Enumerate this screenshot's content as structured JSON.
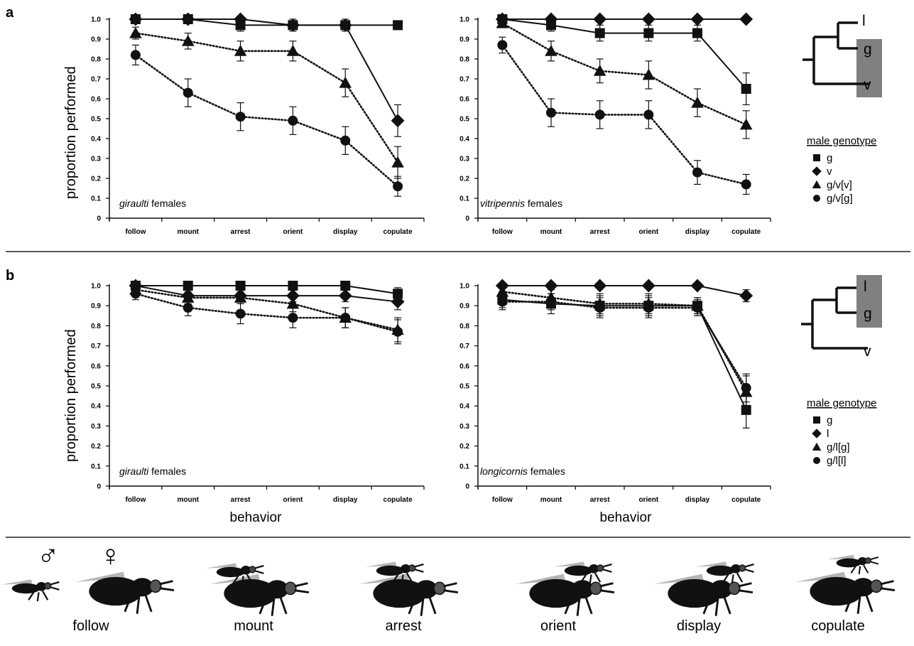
{
  "panel_labels": {
    "a": "a",
    "b": "b"
  },
  "axes": {
    "ylabel": "proportion performed",
    "xlabel": "behavior",
    "yticks": [
      "0",
      "0.1",
      "0.2",
      "0.3",
      "0.4",
      "0.5",
      "0.6",
      "0.7",
      "0.8",
      "0.9",
      "1.0"
    ]
  },
  "chart_data": [
    {
      "type": "line",
      "panel": "a",
      "annotation_italic": "giraulti",
      "annotation_rest": " females",
      "categories": [
        "follow",
        "mount",
        "arrest",
        "orient",
        "display",
        "copulate"
      ],
      "ylim": [
        0,
        1.0
      ],
      "series": [
        {
          "name": "g",
          "marker": "square",
          "line": "solid",
          "values": [
            1.0,
            1.0,
            0.97,
            0.97,
            0.97,
            0.97
          ],
          "err": [
            0.01,
            0.01,
            0.03,
            0.03,
            0.03,
            0.02
          ]
        },
        {
          "name": "v",
          "marker": "diamond",
          "line": "solid",
          "values": [
            1.0,
            1.0,
            1.0,
            0.97,
            0.97,
            0.49
          ],
          "err": [
            0.01,
            0.01,
            0.01,
            0.02,
            0.02,
            0.08
          ]
        },
        {
          "name": "g/v[v]",
          "marker": "triangle",
          "line": "dotted",
          "values": [
            0.93,
            0.89,
            0.84,
            0.84,
            0.68,
            0.28
          ],
          "err": [
            0.03,
            0.04,
            0.05,
            0.05,
            0.07,
            0.08
          ]
        },
        {
          "name": "g/v[g]",
          "marker": "circle",
          "line": "dotted",
          "values": [
            0.82,
            0.63,
            0.51,
            0.49,
            0.39,
            0.16
          ],
          "err": [
            0.05,
            0.07,
            0.07,
            0.07,
            0.07,
            0.05
          ]
        }
      ]
    },
    {
      "type": "line",
      "panel": "a",
      "annotation_italic": "vitripennis",
      "annotation_rest": " females",
      "categories": [
        "follow",
        "mount",
        "arrest",
        "orient",
        "display",
        "copulate"
      ],
      "ylim": [
        0,
        1.0
      ],
      "series": [
        {
          "name": "g",
          "marker": "square",
          "line": "solid",
          "values": [
            1.0,
            0.97,
            0.93,
            0.93,
            0.93,
            0.65
          ],
          "err": [
            0.01,
            0.03,
            0.04,
            0.04,
            0.04,
            0.08
          ]
        },
        {
          "name": "v",
          "marker": "diamond",
          "line": "solid",
          "values": [
            1.0,
            1.0,
            1.0,
            1.0,
            1.0,
            1.0
          ],
          "err": [
            0.01,
            0.01,
            0.01,
            0.01,
            0.01,
            0.01
          ]
        },
        {
          "name": "g/v[v]",
          "marker": "triangle",
          "line": "dotted",
          "values": [
            0.98,
            0.84,
            0.74,
            0.72,
            0.58,
            0.47
          ],
          "err": [
            0.02,
            0.05,
            0.06,
            0.07,
            0.07,
            0.07
          ]
        },
        {
          "name": "g/v[g]",
          "marker": "circle",
          "line": "dotted",
          "values": [
            0.87,
            0.53,
            0.52,
            0.52,
            0.23,
            0.17
          ],
          "err": [
            0.04,
            0.07,
            0.07,
            0.07,
            0.06,
            0.05
          ]
        }
      ]
    },
    {
      "type": "line",
      "panel": "b",
      "annotation_italic": "giraulti",
      "annotation_rest": " females",
      "categories": [
        "follow",
        "mount",
        "arrest",
        "orient",
        "display",
        "copulate"
      ],
      "ylim": [
        0,
        1.0
      ],
      "series": [
        {
          "name": "g",
          "marker": "square",
          "line": "solid",
          "values": [
            1.0,
            1.0,
            1.0,
            1.0,
            1.0,
            0.96
          ],
          "err": [
            0.01,
            0.01,
            0.01,
            0.01,
            0.01,
            0.03
          ]
        },
        {
          "name": "l",
          "marker": "diamond",
          "line": "solid",
          "values": [
            1.0,
            0.95,
            0.95,
            0.95,
            0.95,
            0.92
          ],
          "err": [
            0.01,
            0.03,
            0.03,
            0.03,
            0.03,
            0.04
          ]
        },
        {
          "name": "g/l[g]",
          "marker": "triangle",
          "line": "dotted",
          "values": [
            0.98,
            0.94,
            0.94,
            0.91,
            0.84,
            0.78
          ],
          "err": [
            0.02,
            0.03,
            0.03,
            0.04,
            0.05,
            0.06
          ]
        },
        {
          "name": "g/l[l]",
          "marker": "circle",
          "line": "dotted",
          "values": [
            0.96,
            0.89,
            0.86,
            0.84,
            0.84,
            0.77
          ],
          "err": [
            0.03,
            0.04,
            0.05,
            0.05,
            0.05,
            0.06
          ]
        }
      ]
    },
    {
      "type": "line",
      "panel": "b",
      "annotation_italic": "longicornis",
      "annotation_rest": " females",
      "categories": [
        "follow",
        "mount",
        "arrest",
        "orient",
        "display",
        "copulate"
      ],
      "ylim": [
        0,
        1.0
      ],
      "series": [
        {
          "name": "g",
          "marker": "square",
          "line": "solid",
          "values": [
            0.93,
            0.91,
            0.9,
            0.9,
            0.9,
            0.38
          ],
          "err": [
            0.04,
            0.05,
            0.05,
            0.05,
            0.04,
            0.09
          ]
        },
        {
          "name": "l",
          "marker": "diamond",
          "line": "solid",
          "values": [
            1.0,
            1.0,
            1.0,
            1.0,
            1.0,
            0.95
          ],
          "err": [
            0.01,
            0.01,
            0.01,
            0.01,
            0.01,
            0.03
          ]
        },
        {
          "name": "g/l[g]",
          "marker": "triangle",
          "line": "dotted",
          "values": [
            0.97,
            0.94,
            0.91,
            0.91,
            0.9,
            0.47
          ],
          "err": [
            0.03,
            0.04,
            0.05,
            0.05,
            0.04,
            0.08
          ]
        },
        {
          "name": "g/l[l]",
          "marker": "circle",
          "line": "dotted",
          "values": [
            0.92,
            0.92,
            0.89,
            0.89,
            0.89,
            0.49
          ],
          "err": [
            0.04,
            0.04,
            0.05,
            0.05,
            0.04,
            0.07
          ]
        }
      ]
    }
  ],
  "legend_a": {
    "title": "male genotype",
    "items": [
      {
        "marker": "square",
        "label": "g"
      },
      {
        "marker": "diamond",
        "label": "v"
      },
      {
        "marker": "triangle",
        "label": "g/v[v]"
      },
      {
        "marker": "circle",
        "label": "g/v[g]"
      }
    ]
  },
  "legend_b": {
    "title": "male genotype",
    "items": [
      {
        "marker": "square",
        "label": "g"
      },
      {
        "marker": "diamond",
        "label": "l"
      },
      {
        "marker": "triangle",
        "label": "g/l[g]"
      },
      {
        "marker": "circle",
        "label": "g/l[l]"
      }
    ]
  },
  "tree_a": {
    "top": "l",
    "mid": "g",
    "bottom": "v"
  },
  "tree_b": {
    "top": "l",
    "mid": "g",
    "bottom": "v"
  },
  "illustration": {
    "male_symbol": "♂",
    "female_symbol": "♀",
    "labels": [
      "follow",
      "mount",
      "arrest",
      "orient",
      "display",
      "copulate"
    ]
  },
  "colors": {
    "ink": "#111111",
    "tree_highlight": "#808080",
    "wing": "#b5b5b5",
    "body": "#111111"
  }
}
